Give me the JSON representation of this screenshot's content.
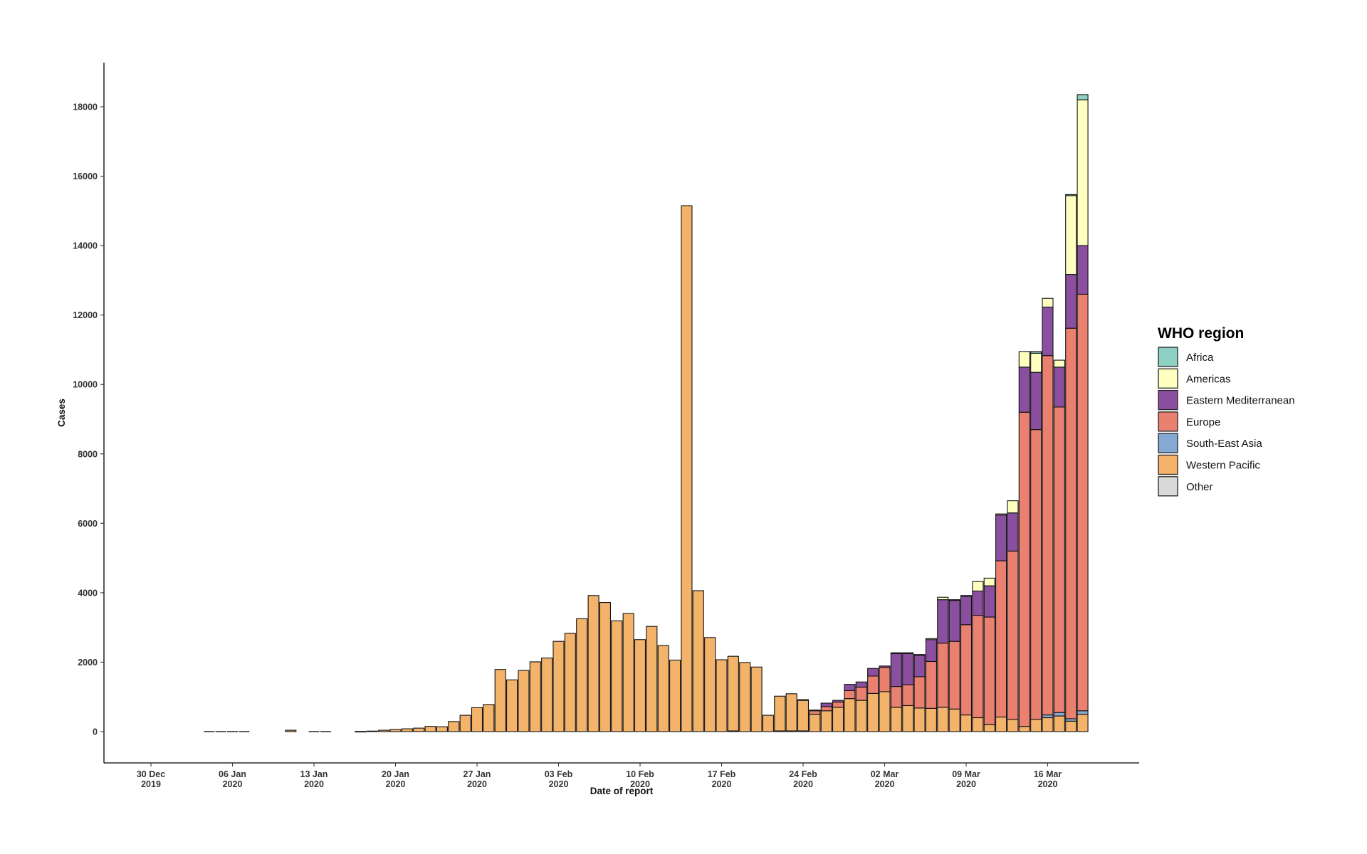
{
  "chart_data": {
    "type": "bar",
    "stacked": true,
    "title": "",
    "xlabel": "Date of report",
    "ylabel": "Cases",
    "ylim": [
      -900,
      19200
    ],
    "y_ticks": [
      0,
      2000,
      4000,
      6000,
      8000,
      10000,
      12000,
      14000,
      16000,
      18000
    ],
    "x_ticks": [
      {
        "day": 0,
        "line1": "30 Dec",
        "line2": "2019"
      },
      {
        "day": 7,
        "line1": "06 Jan",
        "line2": "2020"
      },
      {
        "day": 14,
        "line1": "13 Jan",
        "line2": "2020"
      },
      {
        "day": 21,
        "line1": "20 Jan",
        "line2": "2020"
      },
      {
        "day": 28,
        "line1": "27 Jan",
        "line2": "2020"
      },
      {
        "day": 35,
        "line1": "03 Feb",
        "line2": "2020"
      },
      {
        "day": 42,
        "line1": "10 Feb",
        "line2": "2020"
      },
      {
        "day": 49,
        "line1": "17 Feb",
        "line2": "2020"
      },
      {
        "day": 56,
        "line1": "24 Feb",
        "line2": "2020"
      },
      {
        "day": 63,
        "line1": "02 Mar",
        "line2": "2020"
      },
      {
        "day": 70,
        "line1": "09 Mar",
        "line2": "2020"
      },
      {
        "day": 77,
        "line1": "16 Mar",
        "line2": "2020"
      }
    ],
    "x_range_days": [
      -4,
      84
    ],
    "grid": false,
    "legend": {
      "title": "WHO region",
      "position": "right"
    },
    "series": [
      {
        "name": "Africa",
        "color": "#8fd0c4"
      },
      {
        "name": "Americas",
        "color": "#ffffbf"
      },
      {
        "name": "Eastern Mediterranean",
        "color": "#8b4fa0"
      },
      {
        "name": "Europe",
        "color": "#ea8070"
      },
      {
        "name": "South-East Asia",
        "color": "#84aad1"
      },
      {
        "name": "Western Pacific",
        "color": "#f3b36b"
      },
      {
        "name": "Other",
        "color": "#d9d9d9"
      }
    ],
    "data": [
      {
        "date": "2020-01-04",
        "Western Pacific": 0
      },
      {
        "date": "2020-01-05",
        "Western Pacific": 0
      },
      {
        "date": "2020-01-06",
        "Western Pacific": 0
      },
      {
        "date": "2020-01-07",
        "Western Pacific": 0
      },
      {
        "date": "2020-01-11",
        "Western Pacific": 40
      },
      {
        "date": "2020-01-13",
        "Western Pacific": 0
      },
      {
        "date": "2020-01-14",
        "Western Pacific": 0
      },
      {
        "date": "2020-01-17",
        "Western Pacific": 5
      },
      {
        "date": "2020-01-18",
        "Western Pacific": 15
      },
      {
        "date": "2020-01-19",
        "Western Pacific": 40
      },
      {
        "date": "2020-01-20",
        "Western Pacific": 60
      },
      {
        "date": "2020-01-21",
        "Western Pacific": 80
      },
      {
        "date": "2020-01-22",
        "Western Pacific": 100
      },
      {
        "date": "2020-01-23",
        "Western Pacific": 150
      },
      {
        "date": "2020-01-24",
        "Western Pacific": 140
      },
      {
        "date": "2020-01-25",
        "Western Pacific": 290
      },
      {
        "date": "2020-01-26",
        "Western Pacific": 470
      },
      {
        "date": "2020-01-27",
        "Western Pacific": 690
      },
      {
        "date": "2020-01-28",
        "Western Pacific": 780
      },
      {
        "date": "2020-01-29",
        "Western Pacific": 1790
      },
      {
        "date": "2020-01-30",
        "Western Pacific": 1490
      },
      {
        "date": "2020-01-31",
        "Western Pacific": 1760
      },
      {
        "date": "2020-02-01",
        "Western Pacific": 2010
      },
      {
        "date": "2020-02-02",
        "Western Pacific": 2120
      },
      {
        "date": "2020-02-03",
        "Western Pacific": 2600
      },
      {
        "date": "2020-02-04",
        "Western Pacific": 2830
      },
      {
        "date": "2020-02-05",
        "Western Pacific": 3250
      },
      {
        "date": "2020-02-06",
        "Western Pacific": 3920
      },
      {
        "date": "2020-02-07",
        "Western Pacific": 3720
      },
      {
        "date": "2020-02-08",
        "Western Pacific": 3190
      },
      {
        "date": "2020-02-09",
        "Western Pacific": 3400
      },
      {
        "date": "2020-02-10",
        "Western Pacific": 2650
      },
      {
        "date": "2020-02-11",
        "Western Pacific": 3030
      },
      {
        "date": "2020-02-12",
        "Western Pacific": 2480
      },
      {
        "date": "2020-02-13",
        "Western Pacific": 2060
      },
      {
        "date": "2020-02-14",
        "Western Pacific": 15150
      },
      {
        "date": "2020-02-15",
        "Western Pacific": 4060
      },
      {
        "date": "2020-02-16",
        "Western Pacific": 2710
      },
      {
        "date": "2020-02-17",
        "Western Pacific": 2070
      },
      {
        "date": "2020-02-18",
        "Western Pacific": 2150,
        "Other": 20
      },
      {
        "date": "2020-02-19",
        "Western Pacific": 1990
      },
      {
        "date": "2020-02-20",
        "Western Pacific": 1860
      },
      {
        "date": "2020-02-21",
        "Western Pacific": 470
      },
      {
        "date": "2020-02-22",
        "Western Pacific": 1000,
        "Other": 20
      },
      {
        "date": "2020-02-23",
        "Western Pacific": 1070,
        "Other": 20
      },
      {
        "date": "2020-02-24",
        "Western Pacific": 880,
        "Europe": 20,
        "Other": 20
      },
      {
        "date": "2020-02-25",
        "Western Pacific": 500,
        "Europe": 100,
        "Eastern Mediterranean": 20
      },
      {
        "date": "2020-02-26",
        "Western Pacific": 600,
        "Europe": 120,
        "Eastern Mediterranean": 100
      },
      {
        "date": "2020-02-27",
        "Western Pacific": 700,
        "Europe": 150,
        "Eastern Mediterranean": 50
      },
      {
        "date": "2020-02-28",
        "Western Pacific": 950,
        "Europe": 230,
        "Eastern Mediterranean": 180
      },
      {
        "date": "2020-02-29",
        "Western Pacific": 900,
        "Europe": 380,
        "Eastern Mediterranean": 150
      },
      {
        "date": "2020-03-01",
        "Western Pacific": 1100,
        "Europe": 500,
        "Eastern Mediterranean": 220
      },
      {
        "date": "2020-03-02",
        "Western Pacific": 1150,
        "Europe": 700,
        "Eastern Mediterranean": 40
      },
      {
        "date": "2020-03-03",
        "Western Pacific": 700,
        "Europe": 600,
        "Eastern Mediterranean": 950,
        "Americas": 20
      },
      {
        "date": "2020-03-04",
        "Western Pacific": 750,
        "Europe": 600,
        "Eastern Mediterranean": 900,
        "Americas": 20
      },
      {
        "date": "2020-03-05",
        "Western Pacific": 680,
        "Europe": 900,
        "Eastern Mediterranean": 620,
        "Americas": 20
      },
      {
        "date": "2020-03-06",
        "Western Pacific": 670,
        "Europe": 1350,
        "Eastern Mediterranean": 630,
        "Americas": 30
      },
      {
        "date": "2020-03-07",
        "Western Pacific": 700,
        "Europe": 1850,
        "Eastern Mediterranean": 1250,
        "Americas": 70
      },
      {
        "date": "2020-03-08",
        "Western Pacific": 650,
        "Europe": 1950,
        "Eastern Mediterranean": 1180,
        "Americas": 20
      },
      {
        "date": "2020-03-09",
        "Western Pacific": 480,
        "Europe": 2600,
        "Eastern Mediterranean": 820,
        "Americas": 20
      },
      {
        "date": "2020-03-10",
        "Western Pacific": 400,
        "Europe": 2950,
        "Eastern Mediterranean": 700,
        "Americas": 270
      },
      {
        "date": "2020-03-11",
        "Western Pacific": 200,
        "Europe": 3100,
        "Eastern Mediterranean": 900,
        "Americas": 220
      },
      {
        "date": "2020-03-12",
        "Western Pacific": 420,
        "Europe": 4500,
        "Eastern Mediterranean": 1320,
        "Americas": 30
      },
      {
        "date": "2020-03-13",
        "Western Pacific": 350,
        "Europe": 4850,
        "Eastern Mediterranean": 1100,
        "Americas": 350
      },
      {
        "date": "2020-03-14",
        "Western Pacific": 150,
        "Europe": 9050,
        "Eastern Mediterranean": 1300,
        "Americas": 450
      },
      {
        "date": "2020-03-15",
        "Western Pacific": 350,
        "Europe": 8350,
        "Eastern Mediterranean": 1650,
        "Americas": 550,
        "Africa": 50
      },
      {
        "date": "2020-03-16",
        "Western Pacific": 400,
        "South-East Asia": 80,
        "Europe": 10350,
        "Eastern Mediterranean": 1400,
        "Americas": 250
      },
      {
        "date": "2020-03-17",
        "Western Pacific": 450,
        "South-East Asia": 100,
        "Europe": 8800,
        "Eastern Mediterranean": 1150,
        "Americas": 200
      },
      {
        "date": "2020-03-18",
        "Western Pacific": 300,
        "South-East Asia": 70,
        "Europe": 11250,
        "Eastern Mediterranean": 1550,
        "Americas": 2270,
        "Africa": 30
      },
      {
        "date": "2020-03-19",
        "Western Pacific": 500,
        "South-East Asia": 100,
        "Europe": 12000,
        "Eastern Mediterranean": 1400,
        "Americas": 4200,
        "Africa": 150
      }
    ]
  }
}
